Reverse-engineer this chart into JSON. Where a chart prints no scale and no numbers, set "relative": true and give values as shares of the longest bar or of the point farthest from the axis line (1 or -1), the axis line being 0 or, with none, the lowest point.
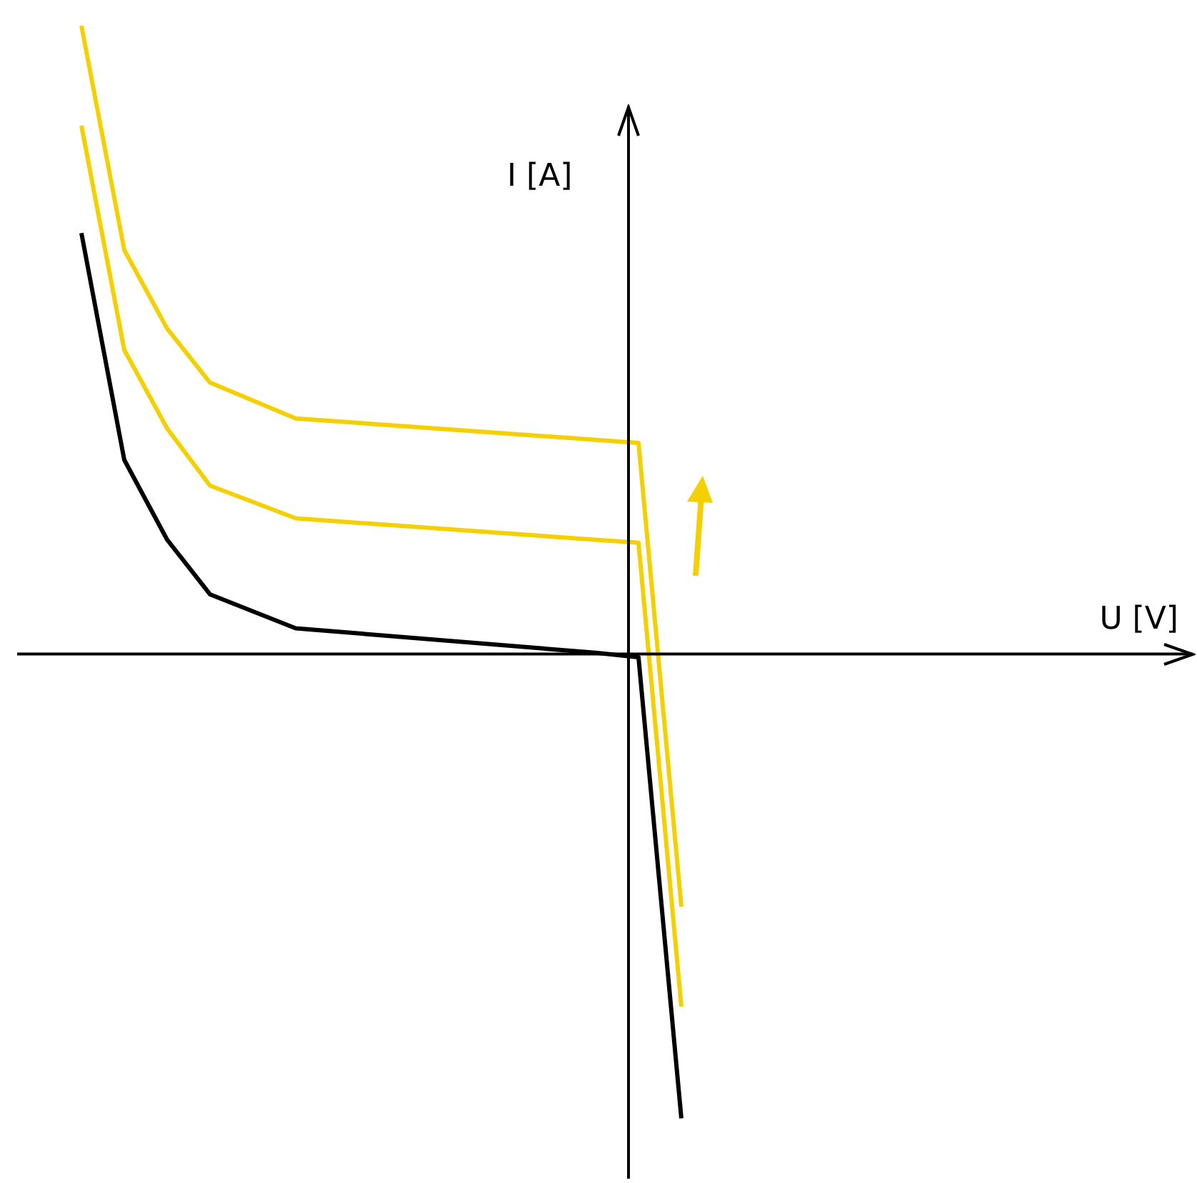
{
  "chart_data": {
    "type": "line",
    "relative": true,
    "annotations": [
      "U [V]"
    ],
    "ylabel": "I [A]",
    "legend": false,
    "marker": "none",
    "line_style": "solid",
    "categories": [
      null,
      null,
      null,
      null,
      null,
      null,
      null,
      null,
      null,
      null,
      null,
      null,
      null,
      null,
      null
    ],
    "series": [
      {
        "color": "#f5d000",
        "values": [
          1.0,
          0.643,
          0.518,
          0.432,
          null,
          0.375,
          null,
          null,
          null,
          null,
          null,
          null,
          null,
          0.336,
          -0.402
        ]
      },
      {
        "color": "#f5d000",
        "values": [
          0.841,
          0.484,
          0.359,
          0.268,
          null,
          0.216,
          null,
          null,
          null,
          null,
          null,
          null,
          null,
          0.177,
          -0.561
        ]
      },
      {
        "color": "#000000",
        "values": [
          0.67,
          0.309,
          0.182,
          0.095,
          null,
          0.041,
          null,
          null,
          null,
          null,
          null,
          null,
          0.002,
          -0.005,
          -0.739
        ]
      }
    ]
  }
}
